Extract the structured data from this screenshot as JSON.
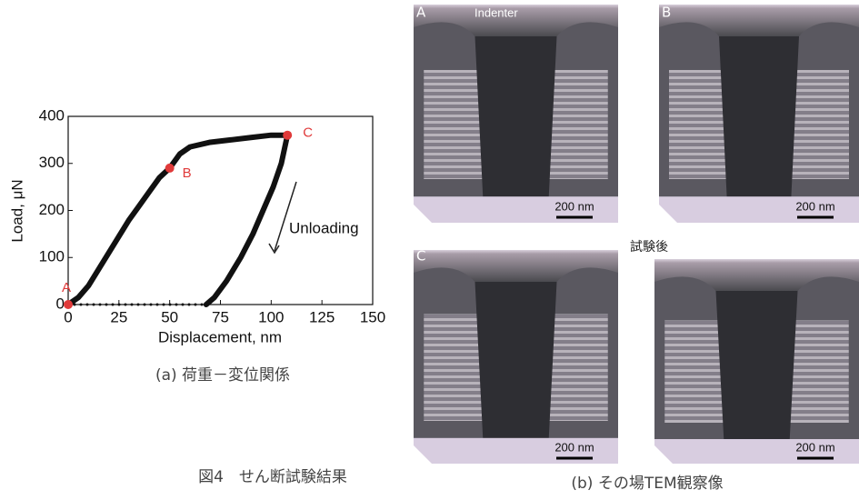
{
  "chart_data": {
    "type": "line",
    "xlabel": "Displacement, nm",
    "ylabel": "Load, μN",
    "annotation": "Unloading",
    "caption": "(a) 荷重－変位関係",
    "xlim": [
      0,
      150
    ],
    "xticks": [
      0,
      25,
      50,
      75,
      100,
      125,
      150
    ],
    "ylim": [
      0,
      400
    ],
    "yticks": [
      0,
      100,
      200,
      300,
      400
    ],
    "series": [
      {
        "color": "#111111",
        "style": "solid",
        "x": [
          0,
          5,
          10,
          15,
          20,
          25,
          30,
          35,
          40,
          45,
          50,
          55,
          60,
          70,
          80,
          90,
          100,
          108,
          107,
          105,
          101,
          96,
          91,
          85,
          78,
          72,
          68
        ],
        "values": [
          0,
          15,
          40,
          75,
          110,
          145,
          180,
          210,
          240,
          270,
          290,
          320,
          335,
          345,
          350,
          355,
          360,
          360,
          340,
          300,
          250,
          200,
          150,
          100,
          50,
          15,
          0
        ]
      },
      {
        "color": "#111111",
        "style": "dotted",
        "x": [
          0,
          68
        ],
        "values": [
          0,
          0
        ]
      }
    ],
    "points": [
      {
        "label": "A",
        "x": 0,
        "y": 0
      },
      {
        "label": "B",
        "x": 50,
        "y": 290
      },
      {
        "label": "C",
        "x": 108,
        "y": 360
      }
    ],
    "point_color": "#e03a3a"
  },
  "figure": {
    "caption": "図4　せん断試験結果",
    "subcaption_b": "(b) その場TEM観察像",
    "panels": [
      {
        "label": "A",
        "annotation": "Indenter",
        "scale": "200 nm"
      },
      {
        "label": "B",
        "scale": "200 nm"
      },
      {
        "label": "C",
        "scale": "200 nm"
      },
      {
        "label": "試験後",
        "scale": "200 nm"
      }
    ]
  }
}
